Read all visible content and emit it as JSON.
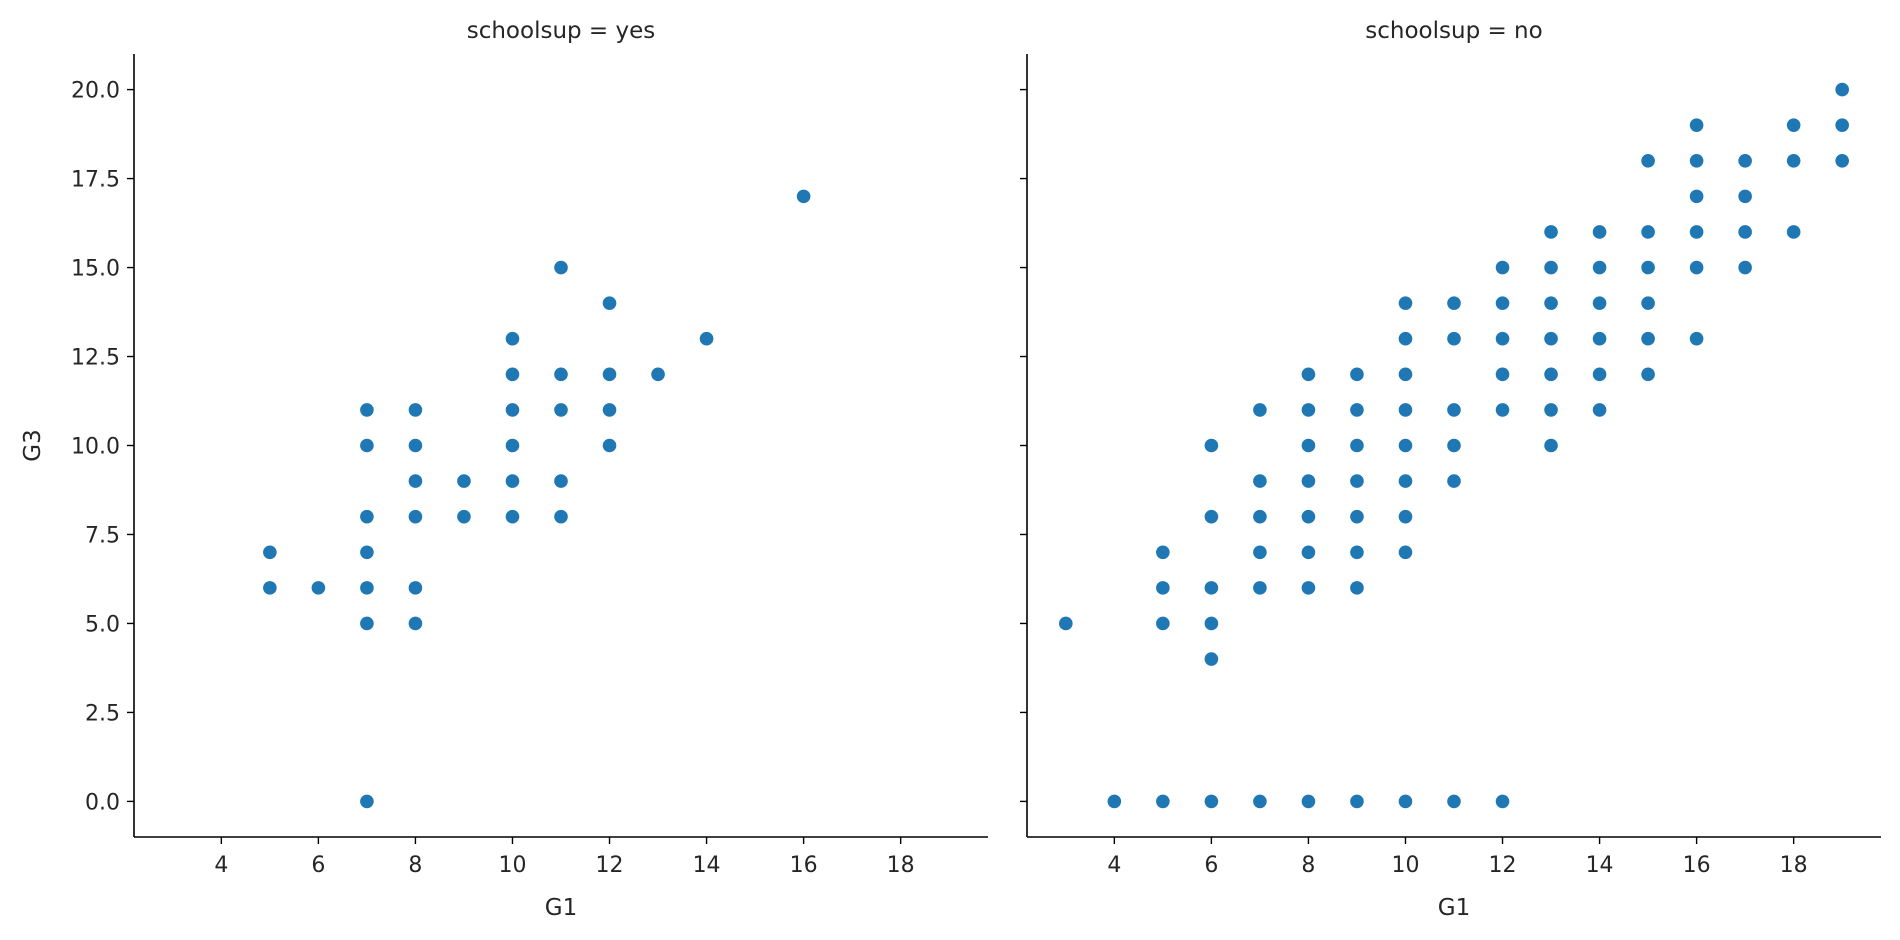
{
  "chart_data": [
    {
      "type": "scatter",
      "title": "schoolsup = yes",
      "xlabel": "G1",
      "ylabel": "G3",
      "xlim": [
        2.2,
        19.8
      ],
      "ylim": [
        -1.0,
        21.0
      ],
      "xticks": [
        "4",
        "6",
        "8",
        "10",
        "12",
        "14",
        "16",
        "18"
      ],
      "yticks": [
        "0.0",
        "2.5",
        "5.0",
        "7.5",
        "10.0",
        "12.5",
        "15.0",
        "17.5",
        "20.0"
      ],
      "grid": false,
      "color": "#1f77b4",
      "points": [
        [
          5,
          7
        ],
        [
          5,
          6
        ],
        [
          6,
          6
        ],
        [
          7,
          11
        ],
        [
          7,
          10
        ],
        [
          7,
          8
        ],
        [
          7,
          7
        ],
        [
          7,
          6
        ],
        [
          7,
          5
        ],
        [
          7,
          0
        ],
        [
          8,
          11
        ],
        [
          8,
          10
        ],
        [
          8,
          9
        ],
        [
          8,
          8
        ],
        [
          8,
          6
        ],
        [
          8,
          5
        ],
        [
          9,
          9
        ],
        [
          9,
          8
        ],
        [
          10,
          13
        ],
        [
          10,
          12
        ],
        [
          10,
          11
        ],
        [
          10,
          10
        ],
        [
          10,
          9
        ],
        [
          10,
          8
        ],
        [
          11,
          15
        ],
        [
          11,
          12
        ],
        [
          11,
          11
        ],
        [
          11,
          9
        ],
        [
          11,
          8
        ],
        [
          12,
          14
        ],
        [
          12,
          12
        ],
        [
          12,
          11
        ],
        [
          12,
          10
        ],
        [
          13,
          12
        ],
        [
          14,
          13
        ],
        [
          16,
          17
        ]
      ]
    },
    {
      "type": "scatter",
      "title": "schoolsup = no",
      "xlabel": "G1",
      "ylabel": "",
      "xlim": [
        2.2,
        19.8
      ],
      "ylim": [
        -1.0,
        21.0
      ],
      "xticks": [
        "4",
        "6",
        "8",
        "10",
        "12",
        "14",
        "16",
        "18"
      ],
      "yticks": [],
      "grid": false,
      "color": "#1f77b4",
      "points": [
        [
          3,
          5
        ],
        [
          4,
          0
        ],
        [
          5,
          7
        ],
        [
          5,
          6
        ],
        [
          5,
          5
        ],
        [
          5,
          0
        ],
        [
          6,
          10
        ],
        [
          6,
          8
        ],
        [
          6,
          6
        ],
        [
          6,
          5
        ],
        [
          6,
          4
        ],
        [
          6,
          0
        ],
        [
          7,
          11
        ],
        [
          7,
          9
        ],
        [
          7,
          8
        ],
        [
          7,
          7
        ],
        [
          7,
          6
        ],
        [
          7,
          0
        ],
        [
          8,
          12
        ],
        [
          8,
          11
        ],
        [
          8,
          10
        ],
        [
          8,
          9
        ],
        [
          8,
          8
        ],
        [
          8,
          7
        ],
        [
          8,
          6
        ],
        [
          8,
          0
        ],
        [
          9,
          12
        ],
        [
          9,
          11
        ],
        [
          9,
          10
        ],
        [
          9,
          9
        ],
        [
          9,
          8
        ],
        [
          9,
          7
        ],
        [
          9,
          6
        ],
        [
          9,
          0
        ],
        [
          10,
          14
        ],
        [
          10,
          13
        ],
        [
          10,
          12
        ],
        [
          10,
          11
        ],
        [
          10,
          10
        ],
        [
          10,
          9
        ],
        [
          10,
          8
        ],
        [
          10,
          7
        ],
        [
          10,
          0
        ],
        [
          11,
          14
        ],
        [
          11,
          13
        ],
        [
          11,
          11
        ],
        [
          11,
          10
        ],
        [
          11,
          9
        ],
        [
          11,
          0
        ],
        [
          12,
          15
        ],
        [
          12,
          14
        ],
        [
          12,
          13
        ],
        [
          12,
          12
        ],
        [
          12,
          11
        ],
        [
          12,
          0
        ],
        [
          13,
          16
        ],
        [
          13,
          15
        ],
        [
          13,
          14
        ],
        [
          13,
          13
        ],
        [
          13,
          12
        ],
        [
          13,
          11
        ],
        [
          13,
          10
        ],
        [
          14,
          16
        ],
        [
          14,
          15
        ],
        [
          14,
          14
        ],
        [
          14,
          13
        ],
        [
          14,
          12
        ],
        [
          14,
          11
        ],
        [
          15,
          18
        ],
        [
          15,
          16
        ],
        [
          15,
          15
        ],
        [
          15,
          14
        ],
        [
          15,
          13
        ],
        [
          15,
          12
        ],
        [
          16,
          19
        ],
        [
          16,
          18
        ],
        [
          16,
          17
        ],
        [
          16,
          16
        ],
        [
          16,
          15
        ],
        [
          16,
          13
        ],
        [
          17,
          18
        ],
        [
          17,
          17
        ],
        [
          17,
          16
        ],
        [
          17,
          15
        ],
        [
          18,
          19
        ],
        [
          18,
          18
        ],
        [
          18,
          16
        ],
        [
          19,
          20
        ],
        [
          19,
          19
        ],
        [
          19,
          18
        ]
      ]
    }
  ]
}
